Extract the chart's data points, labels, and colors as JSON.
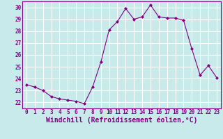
{
  "x": [
    0,
    1,
    2,
    3,
    4,
    5,
    6,
    7,
    8,
    9,
    10,
    11,
    12,
    13,
    14,
    15,
    16,
    17,
    18,
    19,
    20,
    21,
    22,
    23
  ],
  "y": [
    23.5,
    23.3,
    23.0,
    22.5,
    22.3,
    22.2,
    22.1,
    21.9,
    23.3,
    25.4,
    28.1,
    28.8,
    29.9,
    29.0,
    29.2,
    30.2,
    29.2,
    29.1,
    29.1,
    28.9,
    26.5,
    24.3,
    25.1,
    24.1
  ],
  "line_color": "#800080",
  "marker": "D",
  "marker_size": 2.0,
  "background_color": "#c8eaea",
  "grid_color": "#ffffff",
  "xlabel": "Windchill (Refroidissement éolien,°C)",
  "xlabel_color": "#800080",
  "ylim": [
    21.5,
    30.5
  ],
  "yticks": [
    22,
    23,
    24,
    25,
    26,
    27,
    28,
    29,
    30
  ],
  "xticks": [
    0,
    1,
    2,
    3,
    4,
    5,
    6,
    7,
    8,
    9,
    10,
    11,
    12,
    13,
    14,
    15,
    16,
    17,
    18,
    19,
    20,
    21,
    22,
    23
  ],
  "tick_color": "#800080",
  "tick_fontsize": 5.5,
  "xlabel_fontsize": 7.0,
  "linewidth": 0.8
}
